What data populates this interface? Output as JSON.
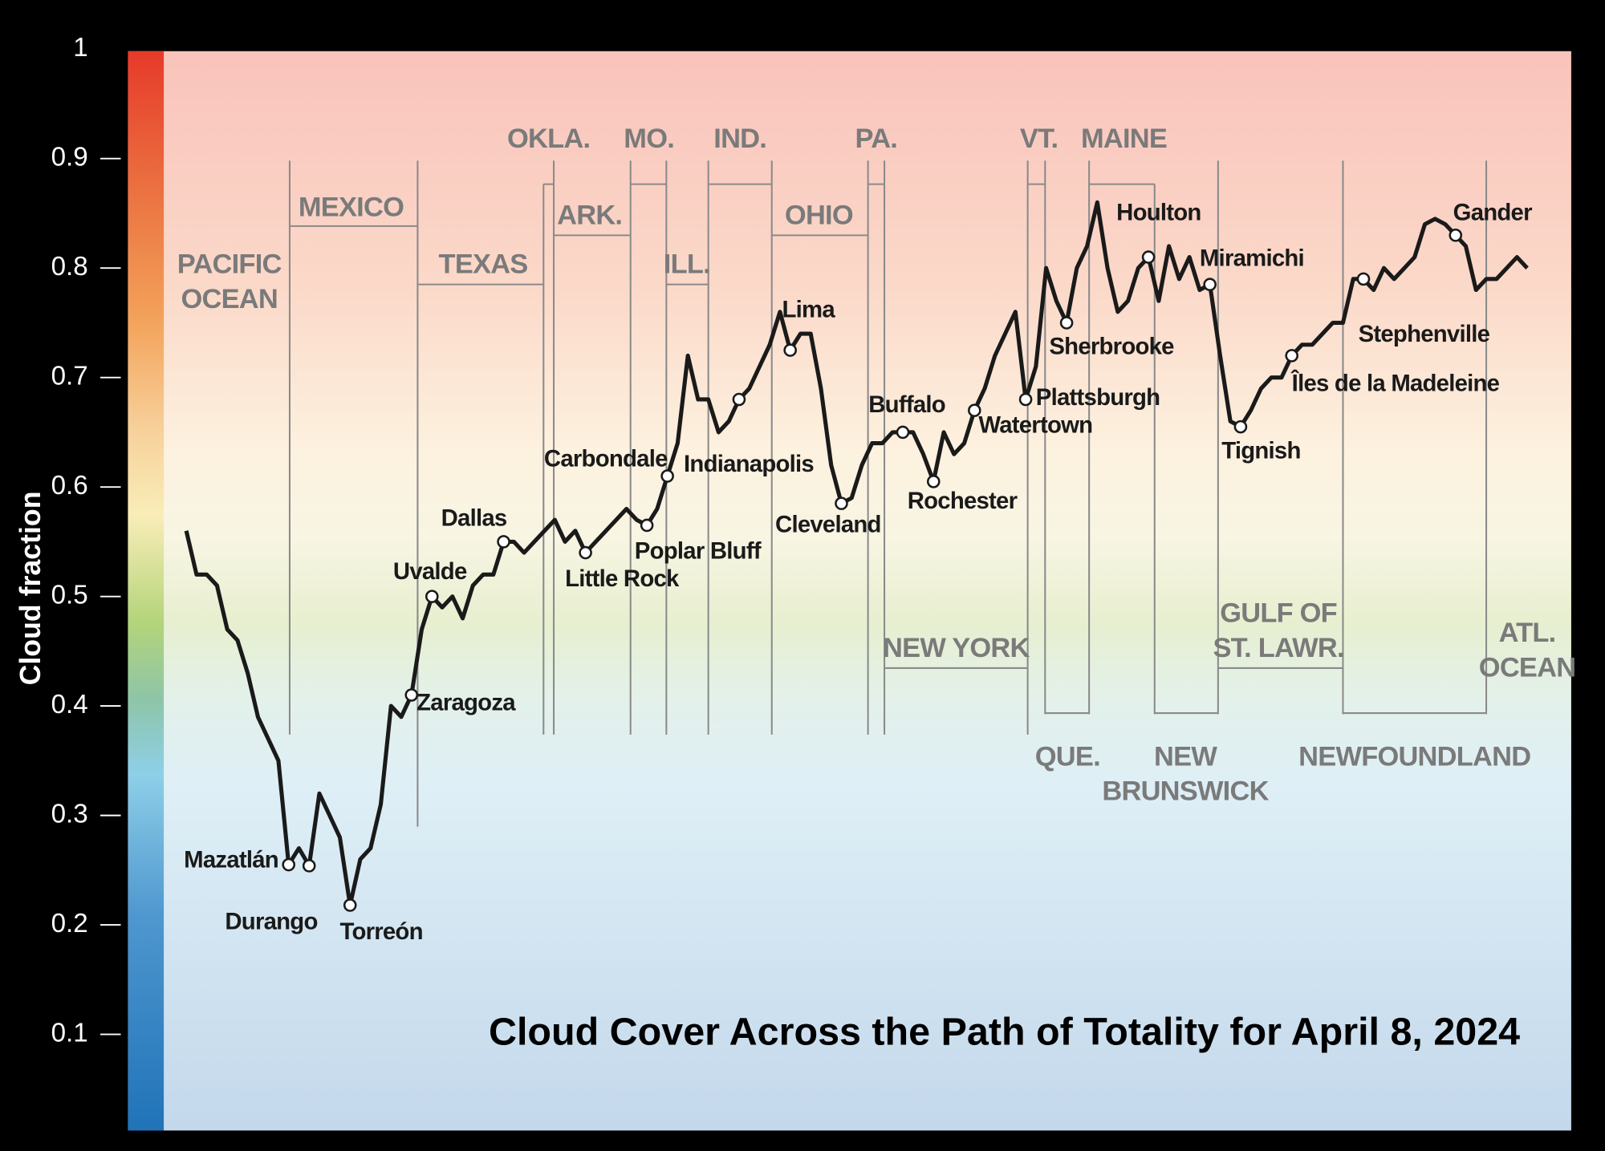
{
  "chart_data": {
    "type": "line",
    "title": "Cloud Cover Across the Path of Totality for April 8, 2024",
    "y_label": "Cloud fraction",
    "ylim": [
      0,
      1
    ],
    "yticks": [
      0.1,
      0.2,
      0.3,
      0.4,
      0.5,
      0.6,
      0.7,
      0.8,
      0.9,
      1
    ],
    "color": "#1a1a1a",
    "values": [
      0.56,
      0.52,
      0.52,
      0.51,
      0.47,
      0.46,
      0.43,
      0.39,
      0.37,
      0.35,
      0.255,
      0.27,
      0.254,
      0.32,
      0.3,
      0.28,
      0.218,
      0.26,
      0.27,
      0.31,
      0.4,
      0.39,
      0.41,
      0.47,
      0.5,
      0.49,
      0.5,
      0.48,
      0.51,
      0.52,
      0.52,
      0.55,
      0.55,
      0.54,
      0.55,
      0.56,
      0.57,
      0.55,
      0.56,
      0.54,
      0.55,
      0.56,
      0.57,
      0.58,
      0.57,
      0.565,
      0.58,
      0.61,
      0.64,
      0.72,
      0.68,
      0.68,
      0.65,
      0.66,
      0.68,
      0.69,
      0.71,
      0.73,
      0.76,
      0.725,
      0.74,
      0.74,
      0.69,
      0.62,
      0.585,
      0.59,
      0.62,
      0.64,
      0.64,
      0.65,
      0.65,
      0.65,
      0.63,
      0.605,
      0.65,
      0.63,
      0.64,
      0.67,
      0.69,
      0.72,
      0.74,
      0.76,
      0.68,
      0.71,
      0.8,
      0.77,
      0.75,
      0.8,
      0.82,
      0.86,
      0.8,
      0.76,
      0.77,
      0.8,
      0.81,
      0.77,
      0.82,
      0.79,
      0.81,
      0.78,
      0.785,
      0.72,
      0.66,
      0.655,
      0.67,
      0.69,
      0.7,
      0.7,
      0.72,
      0.73,
      0.73,
      0.74,
      0.75,
      0.75,
      0.79,
      0.79,
      0.78,
      0.8,
      0.79,
      0.8,
      0.81,
      0.84,
      0.845,
      0.84,
      0.83,
      0.82,
      0.78,
      0.79,
      0.79,
      0.8,
      0.81,
      0.8
    ],
    "categories": [
      null,
      null,
      null,
      null,
      null,
      null,
      null,
      null,
      null,
      null,
      "Mazatlán",
      null,
      "Durango",
      null,
      null,
      null,
      "Torreón",
      null,
      null,
      null,
      null,
      null,
      "Zaragoza",
      null,
      "Uvalde",
      null,
      null,
      null,
      null,
      null,
      null,
      "Dallas",
      null,
      null,
      null,
      null,
      null,
      null,
      null,
      "Little Rock",
      null,
      null,
      null,
      null,
      null,
      "Poplar Bluff",
      null,
      "Carbondale",
      null,
      null,
      null,
      null,
      null,
      null,
      "Indianapolis",
      null,
      null,
      null,
      null,
      "Lima",
      null,
      null,
      null,
      null,
      "Cleveland",
      null,
      null,
      null,
      null,
      null,
      "Buffalo",
      null,
      null,
      "Rochester",
      null,
      null,
      null,
      "Watertown",
      null,
      null,
      null,
      null,
      "Plattsburgh",
      null,
      null,
      null,
      "Sherbrooke",
      null,
      null,
      null,
      null,
      null,
      null,
      null,
      "Houlton",
      null,
      null,
      null,
      null,
      null,
      "Miramichi",
      null,
      null,
      "Tignish",
      null,
      null,
      null,
      null,
      "Îles de la Madeleine",
      null,
      null,
      null,
      null,
      null,
      null,
      "Stephenville",
      null,
      null,
      null,
      null,
      null,
      null,
      null,
      null,
      "Gander",
      null,
      null,
      null,
      null,
      null,
      null,
      null
    ],
    "regions": [
      [
        "PACIFIC",
        "OCEAN"
      ],
      [
        "MEXICO"
      ],
      [
        "TEXAS"
      ],
      [
        "OKLA."
      ],
      [
        "ARK."
      ],
      [
        "MO."
      ],
      [
        "ILL."
      ],
      [
        "IND."
      ],
      [
        "OHIO"
      ],
      [
        "PA."
      ],
      [
        "VT."
      ],
      [
        "MAINE"
      ],
      [
        "NEW YORK"
      ],
      [
        "QUE."
      ],
      [
        "NEW",
        "BRUNSWICK"
      ],
      [
        "GULF OF",
        "ST. LAWR."
      ],
      [
        "NEWFOUNDLAND"
      ],
      [
        "ATL.",
        "OCEAN"
      ]
    ]
  }
}
